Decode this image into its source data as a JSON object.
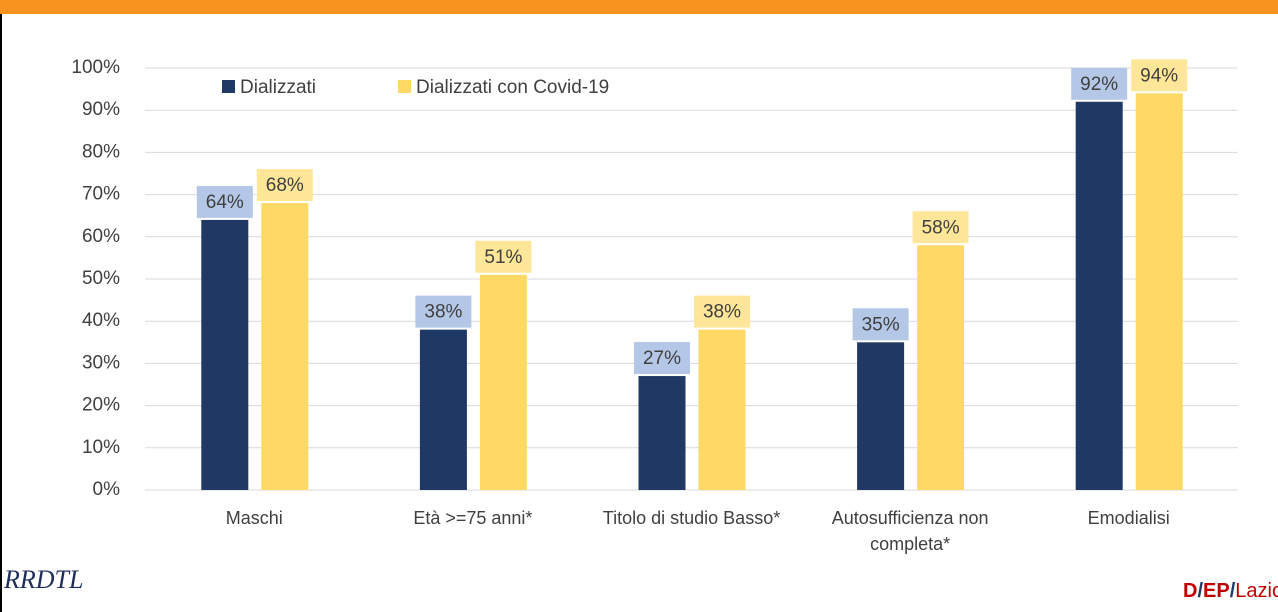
{
  "chart_data": {
    "type": "bar",
    "categories": [
      "Maschi",
      "Età >=75 anni*",
      "Titolo di studio Basso*",
      "Autosufficienza non completa*",
      "Emodialisi"
    ],
    "series": [
      {
        "name": "Dializzati",
        "color": "#1f3864",
        "label_bg": "#b4c7e7",
        "values": [
          64,
          38,
          27,
          35,
          92
        ],
        "value_labels": [
          "64%",
          "38%",
          "27%",
          "35%",
          "92%"
        ]
      },
      {
        "name": "Dializzati con Covid-19",
        "color": "#ffd966",
        "label_bg": "#ffe699",
        "values": [
          68,
          51,
          38,
          58,
          94
        ],
        "value_labels": [
          "68%",
          "51%",
          "38%",
          "58%",
          "94%"
        ]
      }
    ],
    "ylim": [
      0,
      100
    ],
    "yticks": [
      {
        "value": 0,
        "label": "0%"
      },
      {
        "value": 10,
        "label": "10%"
      },
      {
        "value": 20,
        "label": "20%"
      },
      {
        "value": 30,
        "label": "30%"
      },
      {
        "value": 40,
        "label": "40%"
      },
      {
        "value": 50,
        "label": "50%"
      },
      {
        "value": 60,
        "label": "60%"
      },
      {
        "value": 70,
        "label": "70%"
      },
      {
        "value": 80,
        "label": "80%"
      },
      {
        "value": 90,
        "label": "90%"
      },
      {
        "value": 100,
        "label": "100%"
      }
    ],
    "grid": true,
    "legend": "top-left"
  },
  "logos": {
    "left": "RRDTL",
    "right": [
      "D",
      "/",
      "EP",
      "/",
      "Lazio"
    ]
  }
}
